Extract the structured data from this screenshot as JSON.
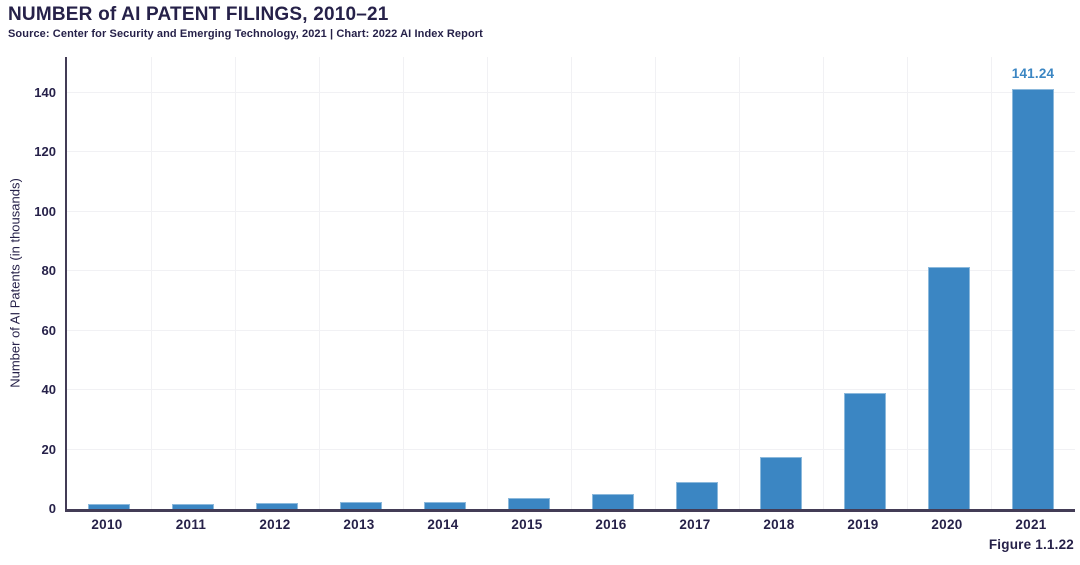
{
  "header": {
    "title": "NUMBER of AI PATENT FILINGS, 2010–21",
    "source": "Source: Center for Security and Emerging Technology, 2021 | Chart: 2022 AI Index Report"
  },
  "figure_label": "Figure 1.1.22",
  "chart_data": {
    "type": "bar",
    "title": "NUMBER of AI PATENT FILINGS, 2010–21",
    "categories": [
      "2010",
      "2011",
      "2012",
      "2013",
      "2014",
      "2015",
      "2016",
      "2017",
      "2018",
      "2019",
      "2020",
      "2021"
    ],
    "values": [
      1.6,
      1.8,
      2.0,
      2.2,
      2.5,
      3.7,
      5.0,
      9.0,
      17.4,
      38.9,
      81.5,
      141.24
    ],
    "annotations": [
      {
        "category": "2021",
        "text": "141.24"
      }
    ],
    "xlabel": "",
    "ylabel": "Number of AI Patents (in thousands)",
    "yticks": [
      0,
      20,
      40,
      60,
      80,
      100,
      120,
      140
    ],
    "ylim": [
      0,
      152
    ],
    "grid": true,
    "legend": "none",
    "colors": {
      "bar": "#3B86C3",
      "bar_border": "#8CB9DC",
      "axis": "#433C56",
      "grid": "#F1F1F4",
      "text": "#262149",
      "value_label": "#3B86C3"
    }
  }
}
